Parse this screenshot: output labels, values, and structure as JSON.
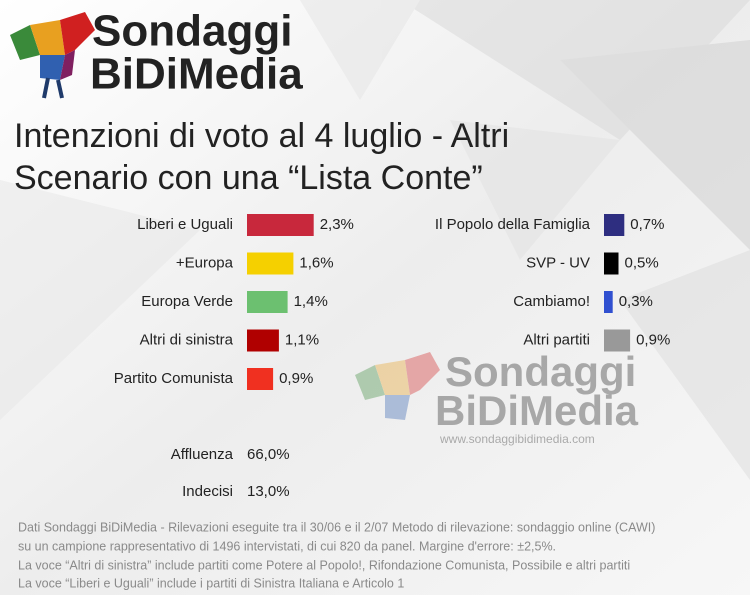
{
  "brand": {
    "line1": "Sondaggi",
    "line2": "BiDiMedia"
  },
  "title_lines": [
    "Intenzioni di voto al 4 luglio - Altri",
    "Scenario con una “Lista Conte”"
  ],
  "chart_data": [
    {
      "type": "bar",
      "orientation": "horizontal",
      "categories": [
        "Liberi e Uguali",
        "+Europa",
        "Europa Verde",
        "Altri di sinistra",
        "Partito Comunista"
      ],
      "values": [
        2.3,
        1.6,
        1.4,
        1.1,
        0.9
      ],
      "value_labels": [
        "2,3%",
        "1,6%",
        "1,4%",
        "1,1%",
        "0,9%"
      ],
      "colors": [
        "#c8283c",
        "#f5d000",
        "#6cc070",
        "#b00000",
        "#f03020"
      ]
    },
    {
      "type": "bar",
      "orientation": "horizontal",
      "categories": [
        "Il Popolo della Famiglia",
        "SVP - UV",
        "Cambiamo!",
        "Altri partiti"
      ],
      "values": [
        0.7,
        0.5,
        0.3,
        0.9
      ],
      "value_labels": [
        "0,7%",
        "0,5%",
        "0,3%",
        "0,9%"
      ],
      "colors": [
        "#2e2e80",
        "#000000",
        "#3050d0",
        "#999999"
      ]
    }
  ],
  "stats": [
    {
      "label": "Affluenza",
      "value": "66,0%"
    },
    {
      "label": "Indecisi",
      "value": "13,0%"
    }
  ],
  "watermark": {
    "line1": "Sondaggi",
    "line2": "BiDiMedia",
    "url": "www.sondaggibidimedia.com"
  },
  "footnotes": [
    "Dati Sondaggi BiDiMedia - Rilevazioni eseguite tra il 30/06 e il 2/07 Metodo di rilevazione: sondaggio online (CAWI)",
    "su un campione rappresentativo di 1496 intervistati, di cui 820 da panel. Margine d'errore: ±2,5%.",
    "La voce “Altri di sinistra” include partiti come Potere al Popolo!, Rifondazione Comunista, Possibile e altri partiti",
    "La voce “Liberi e Uguali” include i partiti di Sinistra Italiana e Articolo 1"
  ]
}
